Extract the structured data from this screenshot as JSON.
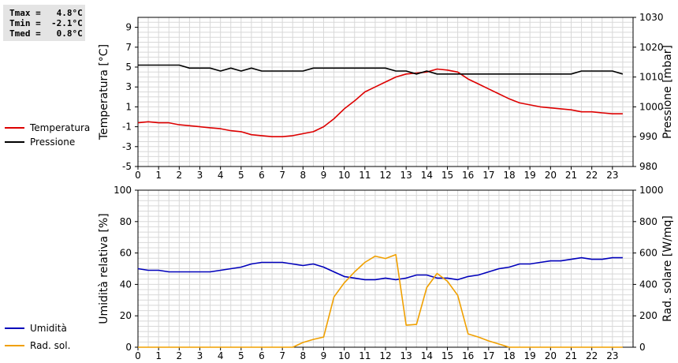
{
  "stats": [
    {
      "label": "Tmax",
      "value": "4.8°C"
    },
    {
      "label": "Tmin",
      "value": "-2.1°C"
    },
    {
      "label": "Tmed",
      "value": "0.8°C"
    }
  ],
  "chart_data": [
    {
      "type": "line",
      "x_ticks": [
        0,
        1,
        2,
        3,
        4,
        5,
        6,
        7,
        8,
        9,
        10,
        11,
        12,
        13,
        14,
        15,
        16,
        17,
        18,
        19,
        20,
        21,
        22,
        23
      ],
      "xlim": [
        0,
        24
      ],
      "ylabel_left": "Temperatura [°C]",
      "ylabel_right": "Pressione [mbar]",
      "ylim_left": [
        -5,
        10
      ],
      "ylim_right": [
        980,
        1030
      ],
      "yticks_left": [
        -5,
        -3,
        -1,
        1,
        3,
        5,
        7,
        9
      ],
      "yticks_right": [
        980,
        990,
        1000,
        1010,
        1020,
        1030
      ],
      "grid": true,
      "legend_position": "left",
      "series": [
        {
          "name": "Temperatura",
          "axis": "left",
          "color": "#dd0000",
          "x": [
            0,
            0.5,
            1,
            1.5,
            2,
            2.5,
            3,
            3.5,
            4,
            4.5,
            5,
            5.5,
            6,
            6.5,
            7,
            7.5,
            8,
            8.5,
            9,
            9.5,
            10,
            10.5,
            11,
            11.5,
            12,
            12.5,
            13,
            13.5,
            14,
            14.5,
            15,
            15.5,
            16,
            16.5,
            17,
            17.5,
            18,
            18.5,
            19,
            19.5,
            20,
            20.5,
            21,
            21.5,
            22,
            22.5,
            23,
            23.5
          ],
          "y": [
            -0.6,
            -0.5,
            -0.6,
            -0.6,
            -0.8,
            -0.9,
            -1.0,
            -1.1,
            -1.2,
            -1.4,
            -1.5,
            -1.8,
            -1.9,
            -2.0,
            -2.0,
            -1.9,
            -1.7,
            -1.5,
            -1.0,
            -0.2,
            0.8,
            1.6,
            2.5,
            3.0,
            3.5,
            4.0,
            4.3,
            4.4,
            4.5,
            4.8,
            4.7,
            4.5,
            3.8,
            3.3,
            2.8,
            2.3,
            1.8,
            1.4,
            1.2,
            1.0,
            0.9,
            0.8,
            0.7,
            0.5,
            0.5,
            0.4,
            0.3,
            0.3
          ]
        },
        {
          "name": "Pressione",
          "axis": "right",
          "color": "#000000",
          "x": [
            0,
            0.5,
            1,
            1.5,
            2,
            2.5,
            3,
            3.5,
            4,
            4.5,
            5,
            5.5,
            6,
            6.5,
            7,
            7.5,
            8,
            8.5,
            9,
            9.5,
            10,
            10.5,
            11,
            11.5,
            12,
            12.5,
            13,
            13.5,
            14,
            14.5,
            15,
            15.5,
            16,
            16.5,
            17,
            17.5,
            18,
            18.5,
            19,
            19.5,
            20,
            20.5,
            21,
            21.5,
            22,
            22.5,
            23,
            23.5
          ],
          "y": [
            1014,
            1014,
            1014,
            1014,
            1014,
            1013,
            1013,
            1013,
            1012,
            1013,
            1012,
            1013,
            1012,
            1012,
            1012,
            1012,
            1012,
            1013,
            1013,
            1013,
            1013,
            1013,
            1013,
            1013,
            1013,
            1012,
            1012,
            1011,
            1012,
            1011,
            1011,
            1011,
            1011,
            1011,
            1011,
            1011,
            1011,
            1011,
            1011,
            1011,
            1011,
            1011,
            1011,
            1012,
            1012,
            1012,
            1012,
            1011
          ]
        }
      ]
    },
    {
      "type": "line",
      "x_ticks": [
        0,
        1,
        2,
        3,
        4,
        5,
        6,
        7,
        8,
        9,
        10,
        11,
        12,
        13,
        14,
        15,
        16,
        17,
        18,
        19,
        20,
        21,
        22,
        23
      ],
      "xlim": [
        0,
        24
      ],
      "ylabel_left": "Umidità relativa [%]",
      "ylabel_right": "Rad. solare [W/mq]",
      "ylim_left": [
        0,
        100
      ],
      "ylim_right": [
        0,
        1000
      ],
      "yticks_left": [
        0,
        20,
        40,
        60,
        80,
        100
      ],
      "yticks_right": [
        0,
        200,
        400,
        600,
        800,
        1000
      ],
      "grid": true,
      "legend_position": "left",
      "series": [
        {
          "name": "Umidità",
          "axis": "left",
          "color": "#0000bb",
          "x": [
            0,
            0.5,
            1,
            1.5,
            2,
            2.5,
            3,
            3.5,
            4,
            4.5,
            5,
            5.5,
            6,
            6.5,
            7,
            7.5,
            8,
            8.5,
            9,
            9.5,
            10,
            10.5,
            11,
            11.5,
            12,
            12.5,
            13,
            13.5,
            14,
            14.5,
            15,
            15.5,
            16,
            16.5,
            17,
            17.5,
            18,
            18.5,
            19,
            19.5,
            20,
            20.5,
            21,
            21.5,
            22,
            22.5,
            23,
            23.5
          ],
          "y": [
            50,
            49,
            49,
            48,
            48,
            48,
            48,
            48,
            49,
            50,
            51,
            53,
            54,
            54,
            54,
            53,
            52,
            53,
            51,
            48,
            45,
            44,
            43,
            43,
            44,
            43,
            44,
            46,
            46,
            44,
            44,
            43,
            45,
            46,
            48,
            50,
            51,
            53,
            53,
            54,
            55,
            55,
            56,
            57,
            56,
            56,
            57,
            57
          ]
        },
        {
          "name": "Rad. sol.",
          "axis": "right",
          "color": "#f0a000",
          "x": [
            0,
            1,
            2,
            3,
            4,
            5,
            6,
            7,
            7.5,
            8,
            8.5,
            9,
            9.5,
            10,
            10.5,
            11,
            11.5,
            12,
            12.5,
            13,
            13.5,
            14,
            14.5,
            15,
            15.5,
            16,
            16.5,
            17,
            17.5,
            18,
            19,
            20,
            21,
            22,
            23,
            23.5
          ],
          "y": [
            0,
            0,
            0,
            0,
            0,
            0,
            0,
            0,
            0,
            30,
            50,
            65,
            320,
            410,
            480,
            540,
            580,
            565,
            590,
            140,
            145,
            380,
            470,
            420,
            330,
            85,
            65,
            40,
            20,
            0,
            0,
            0,
            0,
            0,
            0,
            0
          ]
        }
      ]
    }
  ]
}
